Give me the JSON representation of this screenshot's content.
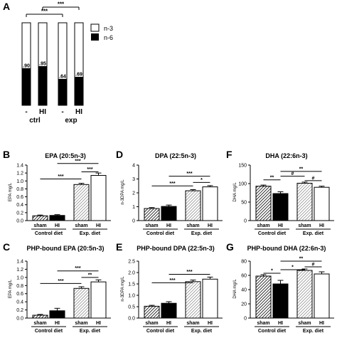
{
  "figure": {
    "panel_letters": [
      "A",
      "B",
      "C",
      "D",
      "E",
      "F",
      "G"
    ]
  },
  "colors": {
    "ink": "#000000",
    "paper": "#ffffff"
  },
  "chart_data": [
    {
      "id": "A",
      "type": "bar",
      "stacked": true,
      "title": "",
      "legend": [
        {
          "label": "n-3",
          "fill": "white"
        },
        {
          "label": "n-6",
          "fill": "black"
        }
      ],
      "legend_position": "top-right",
      "categories": [
        "-",
        "HI",
        "-",
        "HI"
      ],
      "groups": [
        "ctrl",
        "exp"
      ],
      "n6_values": [
        0.9,
        0.95,
        0.64,
        0.69
      ],
      "value_labels": [
        ".90",
        ".95",
        ".64",
        ".69"
      ],
      "ylim": [
        0,
        2.0
      ],
      "significance": [
        {
          "label": "***",
          "from": 0,
          "to": 2
        },
        {
          "label": "***",
          "from": 1,
          "to": 3
        }
      ]
    },
    {
      "id": "B",
      "type": "bar",
      "title": "EPA (20:5n-3)",
      "ylabel": "EPA mg/L",
      "ylim": [
        0,
        1.4
      ],
      "yticks": [
        "0.0",
        "0.2",
        "0.4",
        "0.6",
        "0.8",
        "1.0",
        "1.2",
        "1.4"
      ],
      "categories": [
        "sham",
        "HI",
        "sham",
        "HI"
      ],
      "groups": [
        "Control diet",
        "Exp. diet"
      ],
      "values": [
        0.12,
        0.13,
        0.91,
        1.14
      ],
      "errors": [
        0.02,
        0.02,
        0.03,
        0.06
      ],
      "significance": [
        {
          "label": "***",
          "from": 0,
          "to": 2,
          "y": 1.05
        },
        {
          "label": "***",
          "from": 2,
          "to": 3,
          "y": 1.23
        },
        {
          "label": "***",
          "from": 1,
          "to": 3,
          "y": 1.44
        }
      ]
    },
    {
      "id": "C",
      "type": "bar",
      "title": "PHP-bound EPA (20:5n-3)",
      "ylabel": "EPA mg/L",
      "ylim": [
        0,
        1.4
      ],
      "yticks": [
        "0.0",
        "0.2",
        "0.4",
        "0.6",
        "0.8",
        "1.0",
        "1.2",
        "1.4"
      ],
      "categories": [
        "sham",
        "HI",
        "sham",
        "HI"
      ],
      "groups": [
        "Control diet",
        "Exp. diet"
      ],
      "values": [
        0.07,
        0.18,
        0.73,
        0.89
      ],
      "errors": [
        0.02,
        0.06,
        0.04,
        0.05
      ],
      "significance": [
        {
          "label": "***",
          "from": 0,
          "to": 2,
          "y": 0.85
        },
        {
          "label": "**",
          "from": 2,
          "to": 3,
          "y": 1.0
        },
        {
          "label": "***",
          "from": 1,
          "to": 3,
          "y": 1.16
        }
      ]
    },
    {
      "id": "D",
      "type": "bar",
      "title": "DPA (22:5n-3)",
      "ylabel": "n-3DPA mg/L",
      "ylim": [
        0,
        4
      ],
      "yticks": [
        "0",
        "1",
        "2",
        "3",
        "4"
      ],
      "categories": [
        "sham",
        "HI",
        "sham",
        "HI"
      ],
      "groups": [
        "Control diet",
        "Exp. diet"
      ],
      "values": [
        0.87,
        1.02,
        2.15,
        2.43
      ],
      "errors": [
        0.07,
        0.1,
        0.08,
        0.09
      ],
      "significance": [
        {
          "label": "***",
          "from": 0,
          "to": 2,
          "y": 2.5
        },
        {
          "label": "*",
          "from": 2,
          "to": 3,
          "y": 2.75
        },
        {
          "label": "***",
          "from": 1,
          "to": 3,
          "y": 3.2
        }
      ]
    },
    {
      "id": "E",
      "type": "bar",
      "title": "PHP-bound DPA (22:5n-3)",
      "ylabel": "n-3DPA mg/L",
      "ylim": [
        0,
        2.5
      ],
      "yticks": [
        "0.0",
        "0.5",
        "1.0",
        "1.5",
        "2.0",
        "2.5"
      ],
      "categories": [
        "sham",
        "HI",
        "sham",
        "HI"
      ],
      "groups": [
        "Control diet",
        "Exp. diet"
      ],
      "values": [
        0.52,
        0.65,
        1.6,
        1.71
      ],
      "errors": [
        0.04,
        0.07,
        0.07,
        0.09
      ],
      "significance": [
        {
          "label": "***",
          "from": 0,
          "to": 2,
          "y": 1.55
        },
        {
          "label": "***",
          "from": 1,
          "to": 3,
          "y": 1.92
        }
      ]
    },
    {
      "id": "F",
      "type": "bar",
      "title": "DHA (22:6n-3)",
      "ylabel": "DHA mg/L",
      "ylim": [
        0,
        150
      ],
      "yticks": [
        "0",
        "50",
        "100",
        "150"
      ],
      "categories": [
        "sham",
        "HI",
        "sham",
        "HI"
      ],
      "groups": [
        "Control diet",
        "Exp. diet"
      ],
      "values": [
        93,
        73,
        101,
        90
      ],
      "errors": [
        3,
        5,
        3,
        3
      ],
      "significance": [
        {
          "label": "**",
          "from": 0,
          "to": 1,
          "y": 110
        },
        {
          "label": "#",
          "from": 1,
          "to": 2,
          "y": 120
        },
        {
          "label": "#",
          "from": 2,
          "to": 3,
          "y": 108
        },
        {
          "label": "**",
          "from": 1,
          "to": 3,
          "y": 133
        }
      ]
    },
    {
      "id": "G",
      "type": "bar",
      "title": "PHP-bound DHA (22:6n-3)",
      "ylabel": "DHA mg/L",
      "ylim": [
        0,
        80
      ],
      "yticks": [
        "0",
        "20",
        "40",
        "60",
        "80"
      ],
      "categories": [
        "sham",
        "HI",
        "sham",
        "HI"
      ],
      "groups": [
        "Control diet",
        "Exp. diet"
      ],
      "values": [
        59,
        48,
        67,
        62
      ],
      "errors": [
        2,
        5,
        2,
        3
      ],
      "significance": [
        {
          "label": "*",
          "from": 0,
          "to": 1,
          "y": 63
        },
        {
          "label": "*",
          "from": 1,
          "to": 2,
          "y": 68
        },
        {
          "label": "#",
          "from": 2,
          "to": 3,
          "y": 72
        },
        {
          "label": "**",
          "from": 1,
          "to": 3,
          "y": 80
        }
      ]
    }
  ]
}
